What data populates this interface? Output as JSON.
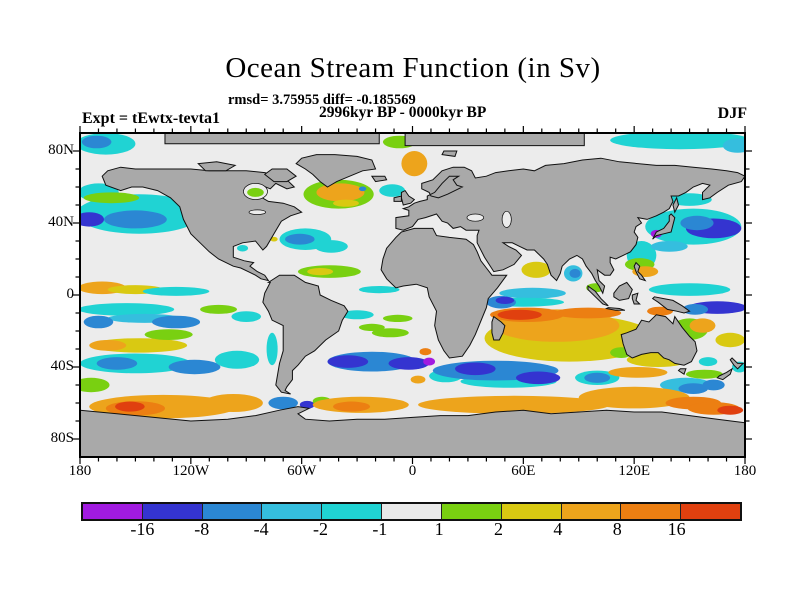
{
  "header": {
    "title": "Ocean Stream Function (in Sv)",
    "stats_line": "rmsd= 3.75955 diff= -0.185569",
    "period_line": "2996kyr BP - 0000kyr BP",
    "experiment_label": "Expt = tEwtx-tevta1",
    "season_label": "DJF"
  },
  "axes": {
    "x_ticks": [
      {
        "label": "180",
        "lon": -180
      },
      {
        "label": "120W",
        "lon": -120
      },
      {
        "label": "60W",
        "lon": -60
      },
      {
        "label": "0",
        "lon": 0
      },
      {
        "label": "60E",
        "lon": 60
      },
      {
        "label": "120E",
        "lon": 120
      },
      {
        "label": "180",
        "lon": 180
      }
    ],
    "y_ticks": [
      {
        "label": "80N",
        "lat": 80
      },
      {
        "label": "40N",
        "lat": 40
      },
      {
        "label": "0",
        "lat": 0
      },
      {
        "label": "40S",
        "lat": -40
      },
      {
        "label": "80S",
        "lat": -80
      }
    ]
  },
  "colorbar": {
    "labels": [
      "-16",
      "-8",
      "-4",
      "-2",
      "-1",
      "1",
      "2",
      "4",
      "8",
      "16"
    ],
    "colors": [
      "#a11be0",
      "#3434d0",
      "#2b87d3",
      "#35bede",
      "#20d3d3",
      "#e9e9e9",
      "#79d011",
      "#d9c912",
      "#eda41c",
      "#ec7f12",
      "#e0400f"
    ]
  },
  "map": {
    "land_color": "#a9a9a9",
    "ocean_color": "#ececec",
    "coast_color": "#111111"
  },
  "chart_data": {
    "type": "heatmap",
    "title": "Ocean Stream Function (in Sv)",
    "units": "Sv",
    "stats": {
      "rmsd": 3.75955,
      "diff": -0.185569
    },
    "period": "2996kyr BP - 0000kyr BP",
    "experiment": "tEwtx-tevta1",
    "season": "DJF",
    "projection": "equirectangular",
    "lon_range": [
      -180,
      180
    ],
    "lat_range": [
      -90,
      90
    ],
    "contour_levels": [
      -16,
      -8,
      -4,
      -2,
      -1,
      1,
      2,
      4,
      8,
      16
    ],
    "palette": {
      "p": "#a11be0",
      "i": "#3434d0",
      "b": "#2b87d3",
      "lb": "#35bede",
      "c": "#20d3d3",
      "n": "#e9e9e9",
      "g": "#79d011",
      "y": "#d9c912",
      "a": "#eda41c",
      "o": "#ec7f12",
      "r": "#e0400f"
    },
    "anomalies": [
      [
        -166,
        84,
        16,
        6,
        "c"
      ],
      [
        -171,
        85,
        8,
        3.5,
        "b"
      ],
      [
        145,
        86,
        38,
        5,
        "c"
      ],
      [
        176,
        83,
        8,
        4,
        "lb"
      ],
      [
        -170,
        57,
        11,
        5,
        "c"
      ],
      [
        -148,
        45,
        34,
        11,
        "c"
      ],
      [
        -150,
        42,
        17,
        5,
        "b"
      ],
      [
        -175,
        42,
        8,
        4,
        "i"
      ],
      [
        -163,
        54,
        15,
        3,
        "g"
      ],
      [
        152,
        38,
        26,
        10,
        "c"
      ],
      [
        124,
        22,
        8,
        8,
        "c"
      ],
      [
        150,
        53,
        12,
        3.5,
        "c"
      ],
      [
        139,
        27,
        10,
        3,
        "lb"
      ],
      [
        163,
        37,
        15,
        5.5,
        "i"
      ],
      [
        154,
        40,
        9,
        4,
        "b"
      ],
      [
        132,
        34,
        3,
        2.2,
        "p"
      ],
      [
        123,
        17,
        8,
        3.5,
        "g"
      ],
      [
        126,
        13,
        7,
        3,
        "a"
      ],
      [
        -168,
        4,
        13,
        3.5,
        "a"
      ],
      [
        -150,
        3,
        15,
        2.5,
        "y"
      ],
      [
        -128,
        2,
        18,
        2.5,
        "c"
      ],
      [
        -155,
        -8,
        26,
        3.5,
        "c"
      ],
      [
        -145,
        -13,
        20,
        2.5,
        "lb"
      ],
      [
        -170,
        -15,
        8,
        3.5,
        "b"
      ],
      [
        -128,
        -15,
        13,
        3.5,
        "b"
      ],
      [
        -105,
        -8,
        10,
        2.5,
        "g"
      ],
      [
        -90,
        -12,
        8,
        3,
        "c"
      ],
      [
        -76,
        -30,
        3,
        9,
        "c"
      ],
      [
        150,
        3,
        22,
        3.5,
        "c"
      ],
      [
        165,
        -7,
        16,
        3.5,
        "i"
      ],
      [
        153,
        -8,
        7,
        3,
        "b"
      ],
      [
        134,
        -9,
        7,
        2.5,
        "o"
      ],
      [
        150,
        -19,
        10,
        6,
        "g"
      ],
      [
        157,
        -17,
        7,
        4,
        "a"
      ],
      [
        172,
        -25,
        8,
        4,
        "y"
      ],
      [
        -148,
        -28,
        26,
        4,
        "y"
      ],
      [
        -165,
        -28,
        10,
        3,
        "a"
      ],
      [
        -132,
        -22,
        13,
        3,
        "g"
      ],
      [
        -150,
        -38,
        30,
        5.5,
        "c"
      ],
      [
        -160,
        -38,
        11,
        3.5,
        "b"
      ],
      [
        -118,
        -40,
        14,
        4,
        "b"
      ],
      [
        -95,
        -36,
        12,
        5,
        "c"
      ],
      [
        -174,
        -50,
        10,
        4,
        "g"
      ],
      [
        160,
        -37,
        5,
        2.5,
        "c"
      ],
      [
        177,
        -40,
        4,
        3,
        "c"
      ],
      [
        100,
        -46,
        12,
        4,
        "c"
      ],
      [
        100,
        -46,
        7,
        2.8,
        "b"
      ],
      [
        148,
        -50,
        14,
        4,
        "lb"
      ],
      [
        152,
        -52,
        8,
        3,
        "b"
      ],
      [
        163,
        -50,
        6,
        3,
        "b"
      ],
      [
        158,
        -44,
        10,
        2.5,
        "g"
      ],
      [
        -135,
        -62,
        40,
        6.5,
        "a"
      ],
      [
        -150,
        -63,
        16,
        4,
        "o"
      ],
      [
        -153,
        -62,
        8,
        2.8,
        "r"
      ],
      [
        -97,
        -60,
        16,
        5,
        "a"
      ],
      [
        -70,
        -60,
        8,
        3.5,
        "b"
      ],
      [
        -57,
        -61,
        4,
        2.2,
        "i"
      ],
      [
        -49,
        -59,
        5,
        2.5,
        "g"
      ],
      [
        -28,
        -61,
        26,
        4.5,
        "a"
      ],
      [
        -33,
        -62,
        10,
        2.8,
        "o"
      ],
      [
        55,
        -61,
        52,
        5,
        "a"
      ],
      [
        120,
        -57,
        30,
        6,
        "a"
      ],
      [
        152,
        -60,
        15,
        3.5,
        "o"
      ],
      [
        163,
        -63,
        14,
        3.5,
        "o"
      ],
      [
        172,
        -64,
        7,
        2.5,
        "r"
      ],
      [
        3,
        -47,
        4,
        2.2,
        "a"
      ],
      [
        -22,
        -37,
        24,
        5.5,
        "b"
      ],
      [
        -35,
        -37,
        11,
        3.5,
        "i"
      ],
      [
        -2,
        -38,
        11,
        3.5,
        "i"
      ],
      [
        9,
        -37,
        3.2,
        2.2,
        "p"
      ],
      [
        7,
        -31.5,
        3.2,
        2,
        "o"
      ],
      [
        -12,
        -21,
        10,
        2.5,
        "g"
      ],
      [
        -22,
        -18,
        7,
        2,
        "g"
      ],
      [
        -8,
        -13,
        8,
        2,
        "g"
      ],
      [
        -30,
        -11,
        9,
        2.5,
        "c"
      ],
      [
        -18,
        3,
        11,
        2,
        "c"
      ],
      [
        -45,
        13,
        17,
        3.5,
        "g"
      ],
      [
        -50,
        13,
        7,
        2,
        "y"
      ],
      [
        -40,
        56,
        19,
        8,
        "g"
      ],
      [
        -39,
        57,
        13,
        5,
        "a"
      ],
      [
        -36,
        51,
        7,
        2,
        "y"
      ],
      [
        -11,
        58,
        7,
        3.5,
        "c"
      ],
      [
        -27,
        59,
        2,
        1.3,
        "b"
      ],
      [
        -58,
        31,
        14,
        6,
        "c"
      ],
      [
        -61,
        31,
        8,
        3,
        "b"
      ],
      [
        -44,
        27,
        9,
        3.5,
        "c"
      ],
      [
        -92,
        26,
        3,
        1.8,
        "c"
      ],
      [
        -75,
        31,
        2,
        1.3,
        "y"
      ],
      [
        1,
        73,
        7,
        7,
        "a"
      ],
      [
        -7,
        85,
        9,
        3.5,
        "g"
      ],
      [
        67,
        14,
        8,
        4.5,
        "y"
      ],
      [
        87,
        12,
        5,
        4.5,
        "lb"
      ],
      [
        88,
        12,
        3,
        2.5,
        "b"
      ],
      [
        99,
        4,
        5,
        2.5,
        "g"
      ],
      [
        85,
        -24,
        46,
        13,
        "y"
      ],
      [
        78,
        -17,
        34,
        9,
        "a"
      ],
      [
        62,
        -11,
        20,
        4,
        "o"
      ],
      [
        58,
        -11,
        12,
        2.8,
        "r"
      ],
      [
        95,
        -10,
        18,
        3,
        "o"
      ],
      [
        65,
        1,
        18,
        3,
        "lb"
      ],
      [
        60,
        -4,
        22,
        2.5,
        "c"
      ],
      [
        48,
        -4,
        8,
        3.5,
        "b"
      ],
      [
        50,
        -3,
        5,
        2,
        "i"
      ],
      [
        52,
        -48,
        26,
        3.5,
        "c"
      ],
      [
        18,
        -45,
        9,
        3.5,
        "c"
      ],
      [
        45,
        -42,
        34,
        5.5,
        "b"
      ],
      [
        34,
        -41,
        11,
        3.5,
        "i"
      ],
      [
        68,
        -46,
        12,
        3.5,
        "i"
      ],
      [
        133,
        -36,
        17,
        4,
        "y"
      ],
      [
        122,
        -43,
        16,
        3,
        "a"
      ],
      [
        113,
        -32,
        6,
        3,
        "g"
      ]
    ],
    "overlay_anomalies": [
      [
        -85,
        57,
        4.5,
        2.5,
        "g"
      ]
    ]
  }
}
